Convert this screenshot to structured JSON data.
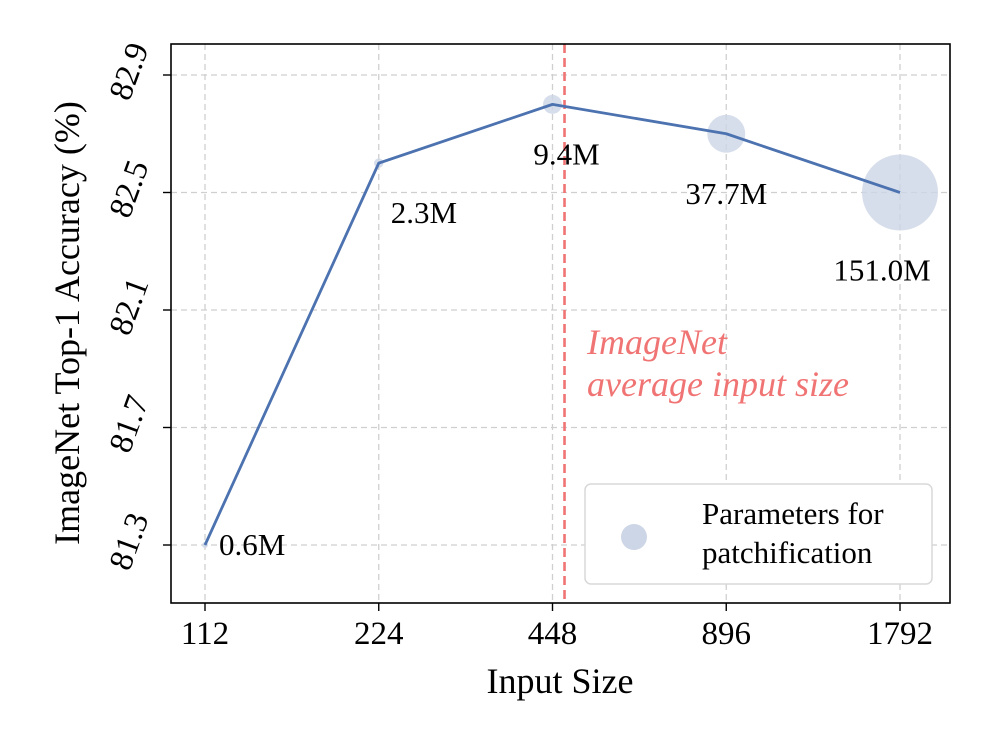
{
  "chart_data": {
    "type": "line",
    "xlabel": "Input Size",
    "ylabel": "ImageNet Top-1 Accuracy (%)",
    "x": [
      112,
      224,
      448,
      896,
      1792
    ],
    "x_tick_labels": [
      "112",
      "224",
      "448",
      "896",
      "1792"
    ],
    "x_scale": "log2",
    "ylim": [
      81.3,
      82.9
    ],
    "y_ticks": [
      81.3,
      81.7,
      82.1,
      82.5,
      82.9
    ],
    "y_tick_labels": [
      "81.3",
      "81.7",
      "82.1",
      "82.5",
      "82.9"
    ],
    "grid": true,
    "series": [
      {
        "values": [
          81.3,
          82.6,
          82.8,
          82.7,
          82.5
        ],
        "color": "#4c72b0"
      }
    ],
    "bubbles": {
      "params_millions": [
        0.6,
        2.3,
        9.4,
        37.7,
        151.0
      ],
      "labels": [
        "0.6M",
        "2.3M",
        "9.4M",
        "37.7M",
        "151.0M"
      ],
      "color": "#cdd6e6"
    },
    "vline": {
      "x": 470,
      "color": "#f07474",
      "style": "dashed"
    },
    "annotation": {
      "lines": [
        "ImageNet",
        "average input size"
      ],
      "color": "#f07474"
    },
    "legend": {
      "label_lines": [
        "Parameters for",
        "patchification"
      ],
      "placement": "lower-right"
    }
  }
}
